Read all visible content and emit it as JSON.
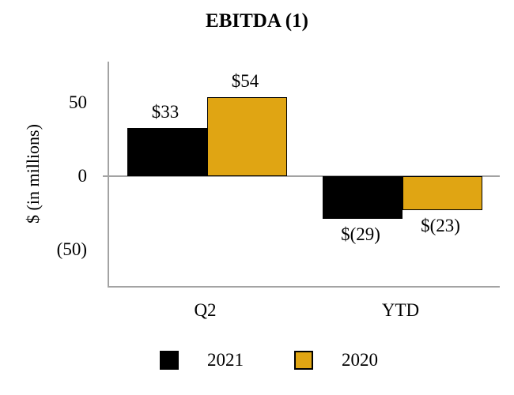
{
  "chart_data": {
    "type": "bar",
    "title": "EBITDA (1)",
    "ylabel": "$ (in millions)",
    "categories": [
      "Q2",
      "YTD"
    ],
    "series": [
      {
        "name": "2021",
        "color": "#000000",
        "values": [
          33,
          -29
        ],
        "data_labels": [
          "$33",
          "$(29)"
        ]
      },
      {
        "name": "2020",
        "color": "#e0a513",
        "values": [
          54,
          -23
        ],
        "data_labels": [
          "$54",
          "$(23)"
        ]
      }
    ],
    "y_ticks": [
      {
        "label": "50",
        "value": 50
      },
      {
        "label": "0",
        "value": 0
      },
      {
        "label": "(50)",
        "value": -50
      }
    ],
    "ylim": [
      -75,
      78
    ],
    "grid": "zero-baseline-only",
    "legend_position": "bottom",
    "colors": {
      "axis_line": "#a3a3a3",
      "bar_border": "#000000",
      "series_2021": "#000000",
      "series_2020": "#e0a513"
    }
  }
}
